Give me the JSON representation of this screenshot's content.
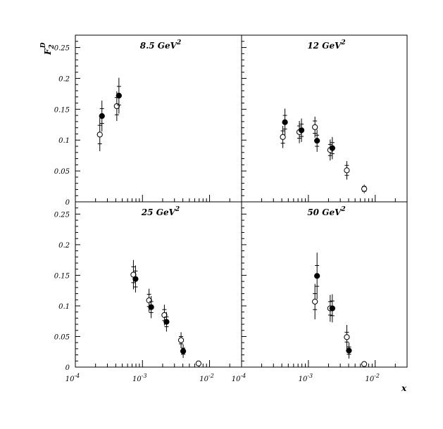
{
  "chart_data": {
    "type": "scatter",
    "x_scale": "log",
    "xlabel": "x",
    "ylabel": "F",
    "ylabel_sup": "D",
    "ylabel_sub": "2",
    "xlim": [
      0.0001,
      0.03
    ],
    "ylim": [
      0,
      0.27
    ],
    "y_tick_labels": [
      {
        "v": 0,
        "t": "0"
      },
      {
        "v": 0.05,
        "t": "0.05"
      },
      {
        "v": 0.1,
        "t": "0.1"
      },
      {
        "v": 0.15,
        "t": "0.15"
      },
      {
        "v": 0.2,
        "t": "0.2"
      },
      {
        "v": 0.25,
        "t": "0.25"
      }
    ],
    "x_tick_labels": [
      {
        "v": 0.0001,
        "base": "10",
        "exp": "-4"
      },
      {
        "v": 0.001,
        "base": "10",
        "exp": "-3"
      },
      {
        "v": 0.01,
        "base": "10",
        "exp": "-2"
      }
    ],
    "panels": [
      {
        "title": "8.5 GeV",
        "title_sup": "2",
        "series": [
          {
            "marker": "filled",
            "points": [
              {
                "x": 0.00024,
                "y": 0.139,
                "stat": 0.012,
                "tot": 0.025
              },
              {
                "x": 0.00043,
                "y": 0.172,
                "stat": 0.015,
                "tot": 0.029
              }
            ]
          },
          {
            "marker": "open",
            "points": [
              {
                "x": 0.00024,
                "y": 0.109,
                "stat": 0.015,
                "tot": 0.027
              },
              {
                "x": 0.00043,
                "y": 0.155,
                "stat": 0.014,
                "tot": 0.024
              }
            ]
          }
        ]
      },
      {
        "title": "12 GeV",
        "title_sup": "2",
        "series": [
          {
            "marker": "filled",
            "points": [
              {
                "x": 0.00043,
                "y": 0.129,
                "stat": 0.011,
                "tot": 0.022
              },
              {
                "x": 0.00076,
                "y": 0.116,
                "stat": 0.01,
                "tot": 0.019
              },
              {
                "x": 0.0013,
                "y": 0.099,
                "stat": 0.009,
                "tot": 0.018
              },
              {
                "x": 0.0022,
                "y": 0.087,
                "stat": 0.009,
                "tot": 0.018
              }
            ]
          },
          {
            "marker": "open",
            "points": [
              {
                "x": 0.00043,
                "y": 0.105,
                "stat": 0.01,
                "tot": 0.018
              },
              {
                "x": 0.00076,
                "y": 0.113,
                "stat": 0.01,
                "tot": 0.018
              },
              {
                "x": 0.0013,
                "y": 0.121,
                "stat": 0.01,
                "tot": 0.017
              },
              {
                "x": 0.0022,
                "y": 0.084,
                "stat": 0.009,
                "tot": 0.017
              },
              {
                "x": 0.0039,
                "y": 0.051,
                "stat": 0.008,
                "tot": 0.015
              },
              {
                "x": 0.0071,
                "y": 0.021,
                "stat": 0.004,
                "tot": 0.007
              }
            ]
          }
        ]
      },
      {
        "title": "25 GeV",
        "title_sup": "2",
        "series": [
          {
            "marker": "filled",
            "points": [
              {
                "x": 0.00076,
                "y": 0.144,
                "stat": 0.013,
                "tot": 0.022
              },
              {
                "x": 0.0013,
                "y": 0.098,
                "stat": 0.009,
                "tot": 0.018
              },
              {
                "x": 0.0022,
                "y": 0.074,
                "stat": 0.008,
                "tot": 0.016
              },
              {
                "x": 0.0039,
                "y": 0.026,
                "stat": 0.005,
                "tot": 0.011
              }
            ]
          },
          {
            "marker": "open",
            "points": [
              {
                "x": 0.00076,
                "y": 0.151,
                "stat": 0.013,
                "tot": 0.024
              },
              {
                "x": 0.0013,
                "y": 0.109,
                "stat": 0.01,
                "tot": 0.019
              },
              {
                "x": 0.0022,
                "y": 0.085,
                "stat": 0.009,
                "tot": 0.017
              },
              {
                "x": 0.0039,
                "y": 0.044,
                "stat": 0.006,
                "tot": 0.013
              },
              {
                "x": 0.0071,
                "y": 0.006,
                "stat": 0.002,
                "tot": 0.004
              }
            ]
          }
        ]
      },
      {
        "title": "50 GeV",
        "title_sup": "2",
        "series": [
          {
            "marker": "filled",
            "points": [
              {
                "x": 0.0013,
                "y": 0.149,
                "stat": 0.017,
                "tot": 0.038
              },
              {
                "x": 0.0022,
                "y": 0.096,
                "stat": 0.012,
                "tot": 0.023
              },
              {
                "x": 0.0039,
                "y": 0.027,
                "stat": 0.006,
                "tot": 0.013
              }
            ]
          },
          {
            "marker": "open",
            "points": [
              {
                "x": 0.0013,
                "y": 0.107,
                "stat": 0.013,
                "tot": 0.029
              },
              {
                "x": 0.0022,
                "y": 0.096,
                "stat": 0.011,
                "tot": 0.022
              },
              {
                "x": 0.0039,
                "y": 0.049,
                "stat": 0.008,
                "tot": 0.02
              },
              {
                "x": 0.0071,
                "y": 0.005,
                "stat": 0.002,
                "tot": 0.004
              }
            ]
          }
        ]
      }
    ]
  }
}
